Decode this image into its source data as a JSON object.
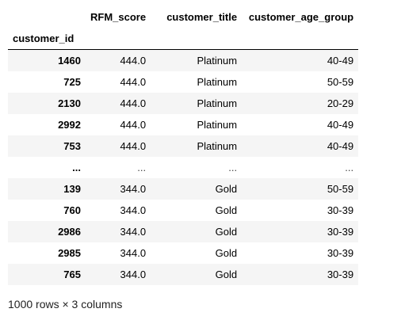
{
  "dataframe": {
    "columns": [
      "RFM_score",
      "customer_title",
      "customer_age_group"
    ],
    "index_name": "customer_id",
    "rows": [
      {
        "id": "1460",
        "rfm": "444.0",
        "title": "Platinum",
        "age": "40-49"
      },
      {
        "id": "725",
        "rfm": "444.0",
        "title": "Platinum",
        "age": "50-59"
      },
      {
        "id": "2130",
        "rfm": "444.0",
        "title": "Platinum",
        "age": "20-29"
      },
      {
        "id": "2992",
        "rfm": "444.0",
        "title": "Platinum",
        "age": "40-49"
      },
      {
        "id": "753",
        "rfm": "444.0",
        "title": "Platinum",
        "age": "40-49"
      },
      {
        "id": "...",
        "rfm": "...",
        "title": "...",
        "age": "..."
      },
      {
        "id": "139",
        "rfm": "344.0",
        "title": "Gold",
        "age": "50-59"
      },
      {
        "id": "760",
        "rfm": "344.0",
        "title": "Gold",
        "age": "30-39"
      },
      {
        "id": "2986",
        "rfm": "344.0",
        "title": "Gold",
        "age": "30-39"
      },
      {
        "id": "2985",
        "rfm": "344.0",
        "title": "Gold",
        "age": "30-39"
      },
      {
        "id": "765",
        "rfm": "344.0",
        "title": "Gold",
        "age": "30-39"
      }
    ],
    "footer": "1000 rows × 3 columns"
  }
}
